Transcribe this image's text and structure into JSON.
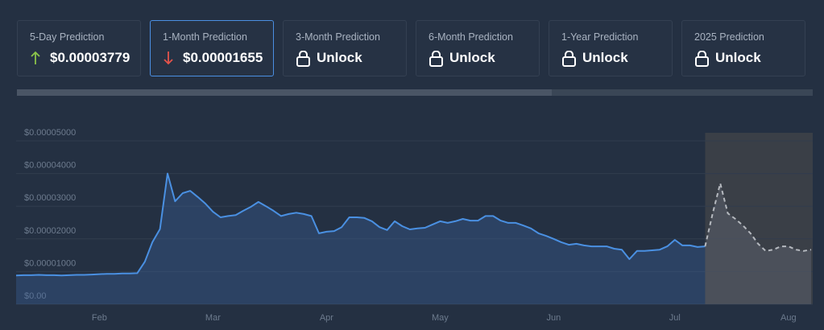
{
  "cards": [
    {
      "label": "5-Day Prediction",
      "value": "$0.00003779"
    },
    {
      "label": "1-Month Prediction",
      "value": "$0.00001655"
    },
    {
      "label": "3-Month Prediction",
      "value": "Unlock"
    },
    {
      "label": "6-Month Prediction",
      "value": "Unlock"
    },
    {
      "label": "1-Year Prediction",
      "value": "Unlock"
    },
    {
      "label": "2025 Prediction",
      "value": "Unlock"
    }
  ],
  "chart_data": {
    "type": "line",
    "categories": [
      null,
      null,
      null,
      null,
      null,
      null,
      null,
      null,
      null,
      null,
      null,
      "Feb",
      null,
      null,
      null,
      null,
      null,
      null,
      null,
      null,
      null,
      null,
      null,
      null,
      null,
      null,
      "Mar",
      null,
      null,
      null,
      null,
      null,
      null,
      null,
      null,
      null,
      null,
      null,
      null,
      null,
      null,
      "Apr",
      null,
      null,
      null,
      null,
      null,
      null,
      null,
      null,
      null,
      null,
      null,
      null,
      null,
      null,
      "May",
      null,
      null,
      null,
      null,
      null,
      null,
      null,
      null,
      null,
      null,
      null,
      null,
      null,
      null,
      "Jun",
      null,
      null,
      null,
      null,
      null,
      null,
      null,
      null,
      null,
      null,
      null,
      null,
      null,
      null,
      null,
      "Jul",
      null,
      null,
      null,
      null,
      null,
      null,
      null,
      null,
      null,
      null,
      null,
      null,
      null,
      null,
      "Aug",
      null,
      null,
      null
    ],
    "series": [
      {
        "color": "#4a90e2",
        "values": [
          8.8e-06,
          8.9e-06,
          8.9e-06,
          9e-06,
          8.9e-06,
          8.9e-06,
          8.8e-06,
          8.9e-06,
          9e-06,
          9e-06,
          9.1e-06,
          9.2e-06,
          9.3e-06,
          9.3e-06,
          9.4e-06,
          9.4e-06,
          9.5e-06,
          1.3e-05,
          1.9e-05,
          2.3e-05,
          4e-05,
          3.15e-05,
          3.4e-05,
          3.47e-05,
          3.28e-05,
          3.08e-05,
          2.83e-05,
          2.66e-05,
          2.7e-05,
          2.73e-05,
          2.86e-05,
          2.98e-05,
          3.13e-05,
          3e-05,
          2.86e-05,
          2.7e-05,
          2.76e-05,
          2.8e-05,
          2.76e-05,
          2.7e-05,
          2.17e-05,
          2.22e-05,
          2.24e-05,
          2.36e-05,
          2.66e-05,
          2.66e-05,
          2.64e-05,
          2.54e-05,
          2.36e-05,
          2.27e-05,
          2.54e-05,
          2.39e-05,
          2.29e-05,
          2.32e-05,
          2.34e-05,
          2.44e-05,
          2.54e-05,
          2.49e-05,
          2.54e-05,
          2.61e-05,
          2.56e-05,
          2.56e-05,
          2.7e-05,
          2.7e-05,
          2.56e-05,
          2.49e-05,
          2.49e-05,
          2.41e-05,
          2.32e-05,
          2.17e-05,
          2.09e-05,
          2e-05,
          1.9e-05,
          1.82e-05,
          1.85e-05,
          1.8e-05,
          1.77e-05,
          1.77e-05,
          1.77e-05,
          1.7e-05,
          1.67e-05,
          1.38e-05,
          1.63e-05,
          1.63e-05,
          1.65e-05,
          1.67e-05,
          1.77e-05,
          1.97e-05,
          1.8e-05,
          1.8e-05,
          1.75e-05,
          1.77e-05,
          null,
          null,
          null,
          null,
          null,
          null,
          null,
          null,
          null,
          null,
          null,
          null,
          null,
          null
        ]
      },
      {
        "color": "#b5b9bf",
        "dashed": true,
        "values": [
          null,
          null,
          null,
          null,
          null,
          null,
          null,
          null,
          null,
          null,
          null,
          null,
          null,
          null,
          null,
          null,
          null,
          null,
          null,
          null,
          null,
          null,
          null,
          null,
          null,
          null,
          null,
          null,
          null,
          null,
          null,
          null,
          null,
          null,
          null,
          null,
          null,
          null,
          null,
          null,
          null,
          null,
          null,
          null,
          null,
          null,
          null,
          null,
          null,
          null,
          null,
          null,
          null,
          null,
          null,
          null,
          null,
          null,
          null,
          null,
          null,
          null,
          null,
          null,
          null,
          null,
          null,
          null,
          null,
          null,
          null,
          null,
          null,
          null,
          null,
          null,
          null,
          null,
          null,
          null,
          null,
          null,
          null,
          null,
          null,
          null,
          null,
          null,
          null,
          null,
          null,
          1.77e-05,
          2.78e-05,
          3.7e-05,
          2.78e-05,
          2.61e-05,
          2.41e-05,
          2.17e-05,
          1.85e-05,
          1.63e-05,
          1.67e-05,
          1.77e-05,
          1.77e-05,
          1.67e-05,
          1.63e-05,
          1.67e-05
        ]
      }
    ],
    "ylim": [
      0,
      5e-05
    ],
    "yticks": [
      {
        "value": 0,
        "label": "$0.00"
      },
      {
        "value": 1e-05,
        "label": "$0.00001000"
      },
      {
        "value": 2e-05,
        "label": "$0.00002000"
      },
      {
        "value": 3e-05,
        "label": "$0.00003000"
      },
      {
        "value": 4e-05,
        "label": "$0.00004000"
      },
      {
        "value": 5e-05,
        "label": "$0.00005000"
      }
    ],
    "grid": true
  }
}
